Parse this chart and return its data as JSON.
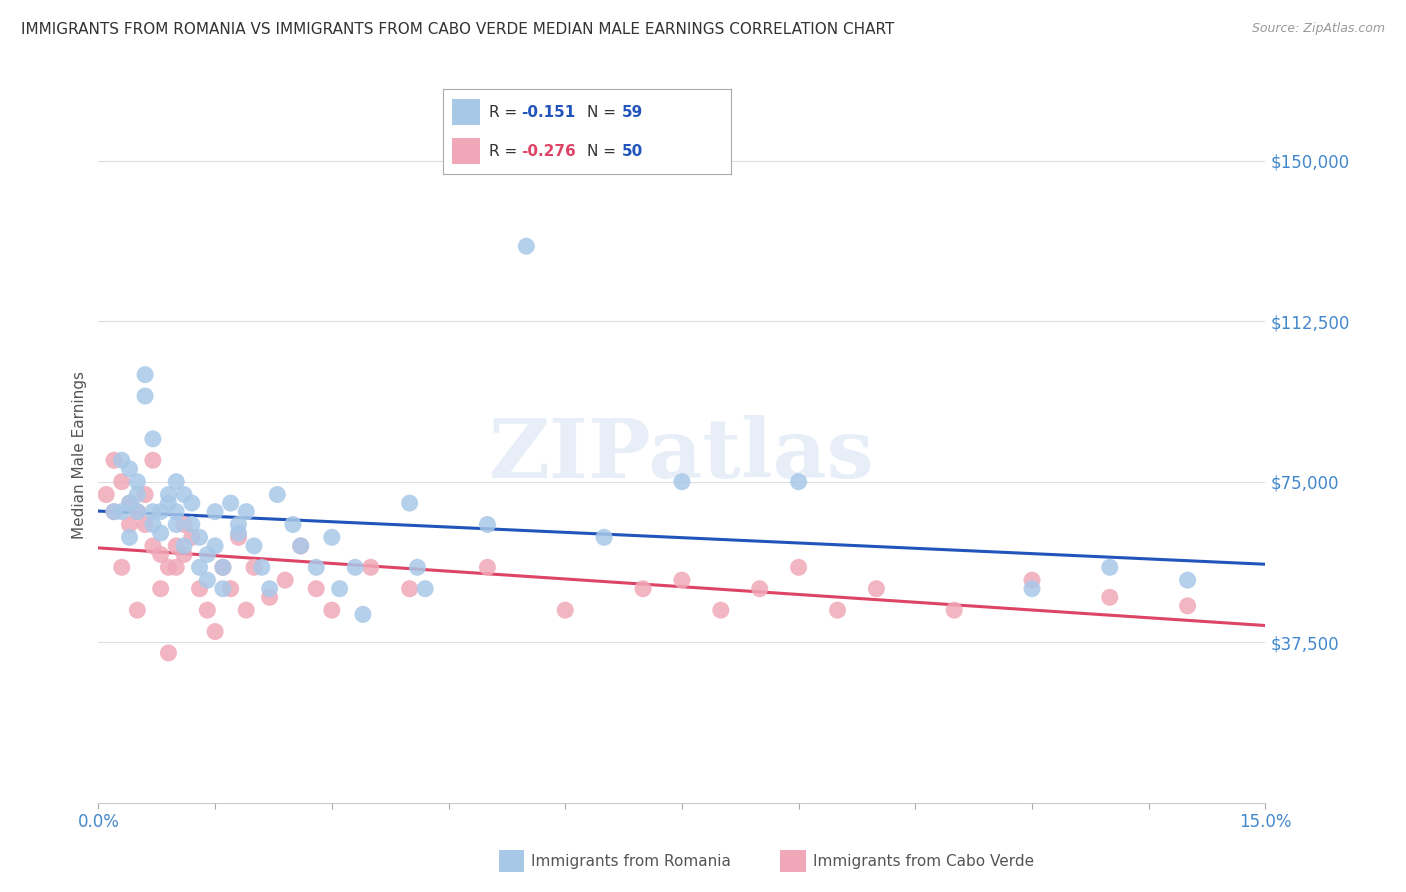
{
  "title": "IMMIGRANTS FROM ROMANIA VS IMMIGRANTS FROM CABO VERDE MEDIAN MALE EARNINGS CORRELATION CHART",
  "source": "Source: ZipAtlas.com",
  "ylabel": "Median Male Earnings",
  "xlim": [
    0.0,
    0.15
  ],
  "ylim": [
    0,
    162500
  ],
  "yticks": [
    37500,
    75000,
    112500,
    150000
  ],
  "ytick_labels": [
    "$37,500",
    "$75,000",
    "$112,500",
    "$150,000"
  ],
  "background_color": "#ffffff",
  "grid_color": "#d8dde6",
  "romania_color": "#a8c8e8",
  "cabo_verde_color": "#f0a8b8",
  "trend_romania_color": "#2255bb",
  "trend_cabo_verde_color": "#dd4466",
  "legend_r_romania": "-0.151",
  "legend_n_romania": "59",
  "legend_r_cabo": "-0.276",
  "legend_n_cabo": "50",
  "legend_color_r_romania": "#2255bb",
  "legend_color_r_cabo": "#dd4466",
  "legend_color_n": "#2255bb",
  "romania_x": [
    0.002,
    0.003,
    0.003,
    0.004,
    0.004,
    0.004,
    0.005,
    0.005,
    0.005,
    0.006,
    0.006,
    0.007,
    0.007,
    0.007,
    0.008,
    0.008,
    0.009,
    0.009,
    0.01,
    0.01,
    0.01,
    0.011,
    0.011,
    0.012,
    0.012,
    0.013,
    0.013,
    0.014,
    0.014,
    0.015,
    0.015,
    0.016,
    0.016,
    0.017,
    0.018,
    0.018,
    0.019,
    0.02,
    0.021,
    0.022,
    0.023,
    0.025,
    0.026,
    0.028,
    0.03,
    0.031,
    0.033,
    0.034,
    0.04,
    0.041,
    0.042,
    0.05,
    0.055,
    0.065,
    0.075,
    0.09,
    0.12,
    0.13,
    0.14
  ],
  "romania_y": [
    68000,
    80000,
    68000,
    78000,
    70000,
    62000,
    75000,
    72000,
    68000,
    100000,
    95000,
    68000,
    65000,
    85000,
    68000,
    63000,
    72000,
    70000,
    75000,
    68000,
    65000,
    72000,
    60000,
    70000,
    65000,
    62000,
    55000,
    58000,
    52000,
    68000,
    60000,
    55000,
    50000,
    70000,
    65000,
    63000,
    68000,
    60000,
    55000,
    50000,
    72000,
    65000,
    60000,
    55000,
    62000,
    50000,
    55000,
    44000,
    70000,
    55000,
    50000,
    65000,
    130000,
    62000,
    75000,
    75000,
    50000,
    55000,
    52000
  ],
  "cabo_x": [
    0.001,
    0.002,
    0.002,
    0.003,
    0.003,
    0.004,
    0.004,
    0.005,
    0.005,
    0.006,
    0.006,
    0.007,
    0.007,
    0.008,
    0.008,
    0.009,
    0.009,
    0.01,
    0.01,
    0.011,
    0.011,
    0.012,
    0.013,
    0.014,
    0.015,
    0.016,
    0.017,
    0.018,
    0.019,
    0.02,
    0.022,
    0.024,
    0.026,
    0.028,
    0.03,
    0.035,
    0.04,
    0.05,
    0.06,
    0.07,
    0.075,
    0.08,
    0.085,
    0.09,
    0.095,
    0.1,
    0.11,
    0.12,
    0.13,
    0.14
  ],
  "cabo_y": [
    72000,
    80000,
    68000,
    75000,
    55000,
    70000,
    65000,
    68000,
    45000,
    72000,
    65000,
    60000,
    80000,
    58000,
    50000,
    55000,
    35000,
    60000,
    55000,
    65000,
    58000,
    62000,
    50000,
    45000,
    40000,
    55000,
    50000,
    62000,
    45000,
    55000,
    48000,
    52000,
    60000,
    50000,
    45000,
    55000,
    50000,
    55000,
    45000,
    50000,
    52000,
    45000,
    50000,
    55000,
    45000,
    50000,
    45000,
    52000,
    48000,
    46000
  ]
}
